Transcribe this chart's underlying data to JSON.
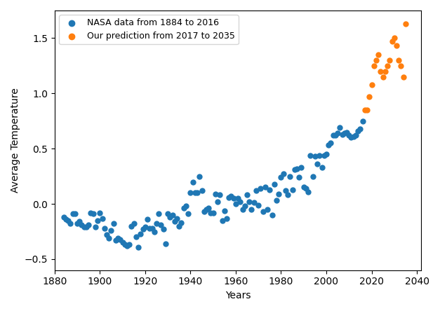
{
  "nasa_years": [
    1884,
    1885,
    1886,
    1887,
    1888,
    1889,
    1890,
    1891,
    1892,
    1893,
    1894,
    1895,
    1896,
    1897,
    1898,
    1899,
    1900,
    1901,
    1902,
    1903,
    1904,
    1905,
    1906,
    1907,
    1908,
    1909,
    1910,
    1911,
    1912,
    1913,
    1914,
    1915,
    1916,
    1917,
    1918,
    1919,
    1920,
    1921,
    1922,
    1923,
    1924,
    1925,
    1926,
    1927,
    1928,
    1929,
    1930,
    1931,
    1932,
    1933,
    1934,
    1935,
    1936,
    1937,
    1938,
    1939,
    1940,
    1941,
    1942,
    1943,
    1944,
    1945,
    1946,
    1947,
    1948,
    1949,
    1950,
    1951,
    1952,
    1953,
    1954,
    1955,
    1956,
    1957,
    1958,
    1959,
    1960,
    1961,
    1962,
    1963,
    1964,
    1965,
    1966,
    1967,
    1968,
    1969,
    1970,
    1971,
    1972,
    1973,
    1974,
    1975,
    1976,
    1977,
    1978,
    1979,
    1980,
    1981,
    1982,
    1983,
    1984,
    1985,
    1986,
    1987,
    1988,
    1989,
    1990,
    1991,
    1992,
    1993,
    1994,
    1995,
    1996,
    1997,
    1998,
    1999,
    2000,
    2001,
    2002,
    2003,
    2004,
    2005,
    2006,
    2007,
    2008,
    2009,
    2010,
    2011,
    2012,
    2013,
    2014,
    2015,
    2016
  ],
  "nasa_temps": [
    -0.12,
    -0.14,
    -0.15,
    -0.18,
    -0.09,
    -0.09,
    -0.18,
    -0.16,
    -0.19,
    -0.21,
    -0.21,
    -0.19,
    -0.08,
    -0.09,
    -0.21,
    -0.15,
    -0.08,
    -0.13,
    -0.22,
    -0.28,
    -0.31,
    -0.24,
    -0.18,
    -0.33,
    -0.31,
    -0.32,
    -0.35,
    -0.37,
    -0.38,
    -0.37,
    -0.2,
    -0.18,
    -0.3,
    -0.39,
    -0.27,
    -0.23,
    -0.21,
    -0.14,
    -0.22,
    -0.22,
    -0.25,
    -0.18,
    -0.09,
    -0.19,
    -0.23,
    -0.36,
    -0.09,
    -0.12,
    -0.1,
    -0.16,
    -0.13,
    -0.2,
    -0.17,
    -0.04,
    -0.02,
    -0.09,
    0.1,
    0.2,
    0.1,
    0.1,
    0.25,
    0.12,
    -0.07,
    -0.05,
    -0.04,
    -0.08,
    -0.08,
    0.09,
    0.02,
    0.08,
    -0.15,
    -0.06,
    -0.13,
    0.06,
    0.07,
    0.05,
    0.0,
    0.05,
    0.02,
    -0.05,
    -0.02,
    0.08,
    0.02,
    -0.05,
    0.01,
    0.12,
    -0.01,
    0.14,
    -0.07,
    0.15,
    -0.05,
    0.13,
    -0.1,
    0.18,
    0.03,
    0.09,
    0.24,
    0.27,
    0.12,
    0.08,
    0.25,
    0.13,
    0.31,
    0.32,
    0.24,
    0.33,
    0.15,
    0.14,
    0.11,
    0.44,
    0.25,
    0.43,
    0.36,
    0.44,
    0.33,
    0.44,
    0.45,
    0.53,
    0.55,
    0.62,
    0.62,
    0.64,
    0.69,
    0.63,
    0.64,
    0.65,
    0.62,
    0.6,
    0.61,
    0.62,
    0.66,
    0.68,
    0.75
  ],
  "pred_years": [
    2017,
    2018,
    2019,
    2020,
    2021,
    2022,
    2023,
    2024,
    2025,
    2026,
    2027,
    2028,
    2029,
    2030,
    2031,
    2032,
    2033,
    2034,
    2035
  ],
  "pred_temps": [
    0.85,
    0.85,
    0.97,
    1.08,
    1.25,
    1.3,
    1.35,
    1.2,
    1.15,
    1.2,
    1.25,
    1.3,
    1.47,
    1.5,
    1.43,
    1.3,
    1.25,
    1.15,
    1.63
  ],
  "nasa_color": "#1f77b4",
  "pred_color": "#ff7f0e",
  "xlabel": "Years",
  "ylabel": "Average Temperature",
  "legend_nasa": "NASA data from 1884 to 2016",
  "legend_pred": "Our prediction from 2017 to 2035",
  "xlim": [
    1880,
    2042
  ],
  "ylim": [
    -0.6,
    1.75
  ],
  "marker_size": 25,
  "figsize": [
    6.27,
    4.44
  ],
  "dpi": 100
}
